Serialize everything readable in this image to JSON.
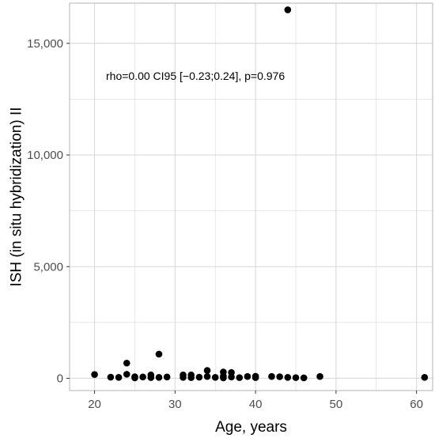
{
  "chart_data": {
    "type": "scatter",
    "title": "",
    "xlabel": "Age, years",
    "ylabel": "ISH (in situ hybridization) II",
    "xlim": [
      16.9,
      62.0
    ],
    "ylim": [
      -550,
      16800
    ],
    "x_ticks": [
      20,
      30,
      40,
      50,
      60
    ],
    "y_ticks": [
      0,
      5000,
      10000,
      15000
    ],
    "y_tick_labels": [
      "0",
      "5,000",
      "10,000",
      "15,000"
    ],
    "grid": true,
    "legend": "none",
    "annotation": "rho=0.00 CI95 [−0.23;0.24], p=0.976",
    "colors": {
      "point": "#000000",
      "grid": "#d9d9d9",
      "panel_border": "#b3b3b3"
    },
    "points": [
      {
        "x": 20,
        "y": 170
      },
      {
        "x": 22,
        "y": 50
      },
      {
        "x": 23,
        "y": 40
      },
      {
        "x": 24,
        "y": 680
      },
      {
        "x": 24,
        "y": 180
      },
      {
        "x": 25,
        "y": 70
      },
      {
        "x": 25,
        "y": 20
      },
      {
        "x": 26,
        "y": 60
      },
      {
        "x": 27,
        "y": 150
      },
      {
        "x": 27,
        "y": 30
      },
      {
        "x": 28,
        "y": 1080
      },
      {
        "x": 28,
        "y": 40
      },
      {
        "x": 29,
        "y": 60
      },
      {
        "x": 31,
        "y": 150
      },
      {
        "x": 31,
        "y": 40
      },
      {
        "x": 32,
        "y": 150
      },
      {
        "x": 32,
        "y": 30
      },
      {
        "x": 33,
        "y": 50
      },
      {
        "x": 34,
        "y": 350
      },
      {
        "x": 34,
        "y": 80
      },
      {
        "x": 35,
        "y": 40
      },
      {
        "x": 36,
        "y": 280
      },
      {
        "x": 36,
        "y": 100
      },
      {
        "x": 36,
        "y": 20
      },
      {
        "x": 37,
        "y": 260
      },
      {
        "x": 37,
        "y": 60
      },
      {
        "x": 38,
        "y": 30
      },
      {
        "x": 39,
        "y": 80
      },
      {
        "x": 40,
        "y": 90
      },
      {
        "x": 40,
        "y": 30
      },
      {
        "x": 42,
        "y": 80
      },
      {
        "x": 43,
        "y": 70
      },
      {
        "x": 44,
        "y": 16500
      },
      {
        "x": 44,
        "y": 40
      },
      {
        "x": 45,
        "y": 30
      },
      {
        "x": 46,
        "y": 20
      },
      {
        "x": 48,
        "y": 80
      },
      {
        "x": 61,
        "y": 40
      }
    ]
  }
}
